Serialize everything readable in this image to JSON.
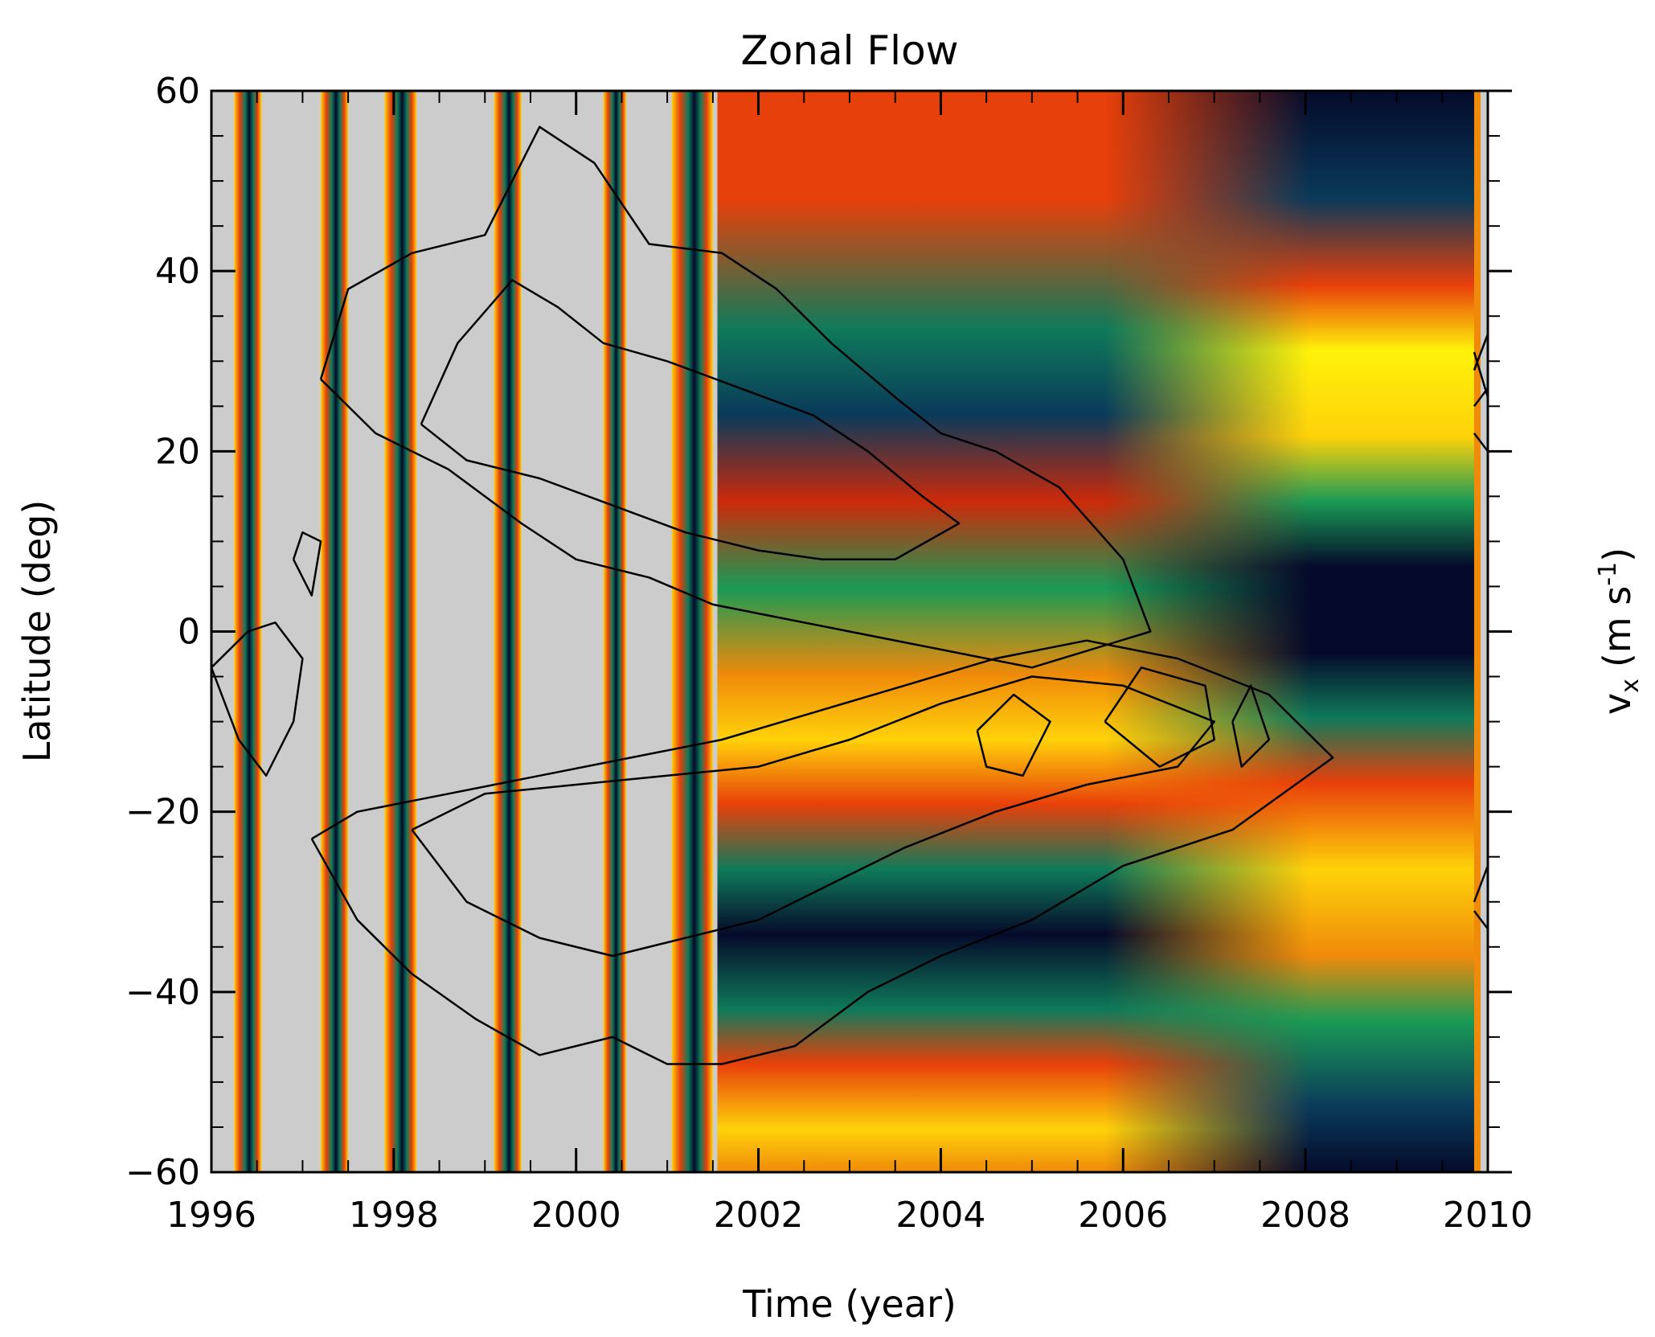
{
  "chart_data": {
    "type": "heatmap",
    "title": "Zonal Flow",
    "xlabel": "Time (year)",
    "ylabel": "Latitude (deg)",
    "colorbar_label_main": "v",
    "colorbar_label_sub": "x",
    "colorbar_label_units": "(m s",
    "colorbar_label_exp": "-1",
    "colorbar_label_close": ")",
    "xlim": [
      1996,
      2010
    ],
    "ylim": [
      -60,
      60
    ],
    "x_ticks": [
      1996,
      1998,
      2000,
      2002,
      2004,
      2006,
      2008,
      2010
    ],
    "x_tick_labels": [
      "1996",
      "1998",
      "2000",
      "2002",
      "2004",
      "2006",
      "2008",
      "2010"
    ],
    "y_ticks": [
      -60,
      -40,
      -20,
      0,
      20,
      40,
      60
    ],
    "y_tick_labels": [
      "−60",
      "−40",
      "−20",
      "0",
      "20",
      "40",
      "60"
    ],
    "colormap": [
      "#050a2a",
      "#0a3a5a",
      "#0f7a5a",
      "#1a9a55",
      "#cc2a0a",
      "#e8400a",
      "#f08a0a",
      "#ffd20a",
      "#fff20a"
    ],
    "missing_color": "#cccccc",
    "data_strips_pre2001": [
      {
        "start": 1996.25,
        "end": 1996.55
      },
      {
        "start": 1997.2,
        "end": 1997.5
      },
      {
        "start": 1997.9,
        "end": 1998.25
      },
      {
        "start": 1999.1,
        "end": 1999.4
      },
      {
        "start": 2000.3,
        "end": 2000.55
      },
      {
        "start": 2001.05,
        "end": 2001.5
      }
    ],
    "continuous_data_start": 2001.55,
    "continuous_data_end": 2009.85,
    "sunspot_contours": [
      {
        "name": "north",
        "points": [
          [
            1997.2,
            28
          ],
          [
            1997.5,
            38
          ],
          [
            1998.2,
            42
          ],
          [
            1999.0,
            44
          ],
          [
            1999.6,
            56
          ],
          [
            2000.2,
            52
          ],
          [
            2000.8,
            43
          ],
          [
            2001.6,
            42
          ],
          [
            2002.2,
            38
          ],
          [
            2002.8,
            32
          ],
          [
            2003.5,
            26
          ],
          [
            2004.0,
            22
          ],
          [
            2004.6,
            20
          ],
          [
            2005.3,
            16
          ],
          [
            2006.0,
            8
          ],
          [
            2006.3,
            0
          ],
          [
            2005.0,
            -4
          ],
          [
            2004.0,
            -2
          ],
          [
            2003.0,
            0
          ],
          [
            2002.0,
            2
          ],
          [
            2001.5,
            3
          ],
          [
            2000.8,
            6
          ],
          [
            2000.0,
            8
          ],
          [
            1999.4,
            12
          ],
          [
            1998.6,
            18
          ],
          [
            1997.8,
            22
          ],
          [
            1997.2,
            28
          ]
        ]
      },
      {
        "name": "north-inner",
        "points": [
          [
            1998.3,
            23
          ],
          [
            1998.7,
            32
          ],
          [
            1999.3,
            39
          ],
          [
            1999.8,
            36
          ],
          [
            2000.3,
            32
          ],
          [
            2001.0,
            30
          ],
          [
            2001.8,
            27
          ],
          [
            2002.6,
            24
          ],
          [
            2003.2,
            20
          ],
          [
            2003.8,
            15
          ],
          [
            2004.2,
            12
          ],
          [
            2003.5,
            8
          ],
          [
            2002.7,
            8
          ],
          [
            2002.0,
            9
          ],
          [
            2001.2,
            11
          ],
          [
            2000.4,
            14
          ],
          [
            1999.6,
            17
          ],
          [
            1998.8,
            19
          ],
          [
            1998.3,
            23
          ]
        ]
      },
      {
        "name": "south",
        "points": [
          [
            1997.1,
            -23
          ],
          [
            1997.6,
            -32
          ],
          [
            1998.2,
            -38
          ],
          [
            1998.9,
            -43
          ],
          [
            1999.6,
            -47
          ],
          [
            2000.4,
            -45
          ],
          [
            2001.0,
            -48
          ],
          [
            2001.6,
            -48
          ],
          [
            2002.4,
            -46
          ],
          [
            2003.2,
            -40
          ],
          [
            2004.0,
            -36
          ],
          [
            2005.0,
            -32
          ],
          [
            2006.0,
            -26
          ],
          [
            2007.2,
            -22
          ],
          [
            2008.3,
            -14
          ],
          [
            2007.6,
            -7
          ],
          [
            2006.6,
            -3
          ],
          [
            2005.6,
            -1
          ],
          [
            2004.6,
            -3
          ],
          [
            2003.6,
            -6
          ],
          [
            2002.6,
            -9
          ],
          [
            2001.6,
            -12
          ],
          [
            2000.6,
            -14
          ],
          [
            1999.6,
            -16
          ],
          [
            1998.6,
            -18
          ],
          [
            1997.6,
            -20
          ],
          [
            1997.1,
            -23
          ]
        ]
      },
      {
        "name": "south-inner",
        "points": [
          [
            1998.2,
            -22
          ],
          [
            1998.8,
            -30
          ],
          [
            1999.6,
            -34
          ],
          [
            2000.4,
            -36
          ],
          [
            2001.2,
            -34
          ],
          [
            2002.0,
            -32
          ],
          [
            2002.8,
            -28
          ],
          [
            2003.6,
            -24
          ],
          [
            2004.6,
            -20
          ],
          [
            2005.6,
            -17
          ],
          [
            2006.6,
            -15
          ],
          [
            2007.0,
            -10
          ],
          [
            2006.0,
            -6
          ],
          [
            2005.0,
            -5
          ],
          [
            2004.0,
            -8
          ],
          [
            2003.0,
            -12
          ],
          [
            2002.0,
            -15
          ],
          [
            2001.0,
            -16
          ],
          [
            2000.0,
            -17
          ],
          [
            1999.0,
            -18
          ],
          [
            1998.2,
            -22
          ]
        ]
      },
      {
        "name": "equator-blob",
        "points": [
          [
            1996.0,
            -4
          ],
          [
            1996.3,
            -12
          ],
          [
            1996.6,
            -16
          ],
          [
            1996.9,
            -10
          ],
          [
            1997.0,
            -3
          ],
          [
            1996.7,
            1
          ],
          [
            1996.4,
            0
          ],
          [
            1996.0,
            -4
          ]
        ]
      },
      {
        "name": "lowlat-blob",
        "points": [
          [
            1996.9,
            8
          ],
          [
            1997.1,
            4
          ],
          [
            1997.2,
            10
          ],
          [
            1997.0,
            11
          ],
          [
            1996.9,
            8
          ]
        ]
      },
      {
        "name": "eq-right-1",
        "points": [
          [
            2007.2,
            -10
          ],
          [
            2007.4,
            -6
          ],
          [
            2007.6,
            -12
          ],
          [
            2007.3,
            -15
          ],
          [
            2007.2,
            -10
          ]
        ]
      },
      {
        "name": "eq-right-2",
        "points": [
          [
            2005.8,
            -10
          ],
          [
            2006.2,
            -4
          ],
          [
            2006.9,
            -6
          ],
          [
            2007.0,
            -12
          ],
          [
            2006.4,
            -15
          ],
          [
            2005.8,
            -10
          ]
        ]
      },
      {
        "name": "eq-right-3",
        "points": [
          [
            2004.4,
            -11
          ],
          [
            2004.8,
            -7
          ],
          [
            2005.2,
            -10
          ],
          [
            2004.9,
            -16
          ],
          [
            2004.5,
            -15
          ],
          [
            2004.4,
            -11
          ]
        ]
      },
      {
        "name": "edge-north",
        "points": [
          [
            2009.85,
            22
          ],
          [
            2010.0,
            20
          ],
          [
            2010.0,
            27
          ],
          [
            2009.85,
            25
          ]
        ]
      },
      {
        "name": "edge-north-2",
        "points": [
          [
            2009.85,
            29
          ],
          [
            2010.0,
            33
          ],
          [
            2010.0,
            26
          ],
          [
            2009.85,
            31
          ]
        ]
      },
      {
        "name": "edge-south",
        "points": [
          [
            2009.85,
            -30
          ],
          [
            2010.0,
            -26
          ],
          [
            2010.0,
            -33
          ],
          [
            2009.85,
            -31
          ]
        ]
      }
    ]
  }
}
